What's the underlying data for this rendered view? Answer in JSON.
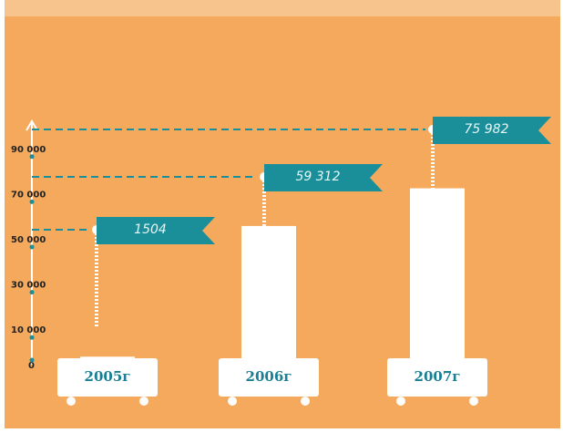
{
  "chart_data": {
    "type": "bar",
    "categories": [
      "2005г",
      "2006г",
      "2007г"
    ],
    "values": [
      1504,
      59312,
      75982
    ],
    "value_labels": [
      "1504",
      "59 312",
      "75 982"
    ],
    "color": "#ffffff",
    "ylim": [
      0,
      100000
    ],
    "yticks": [
      0,
      {
        "value": 10000,
        "label": "10 000"
      },
      {
        "value": 30000,
        "label": "30 000"
      },
      {
        "value": 50000,
        "label": "50 000"
      },
      {
        "value": 70000,
        "label": "70 000"
      },
      {
        "value": 90000,
        "label": "90 000"
      }
    ]
  }
}
